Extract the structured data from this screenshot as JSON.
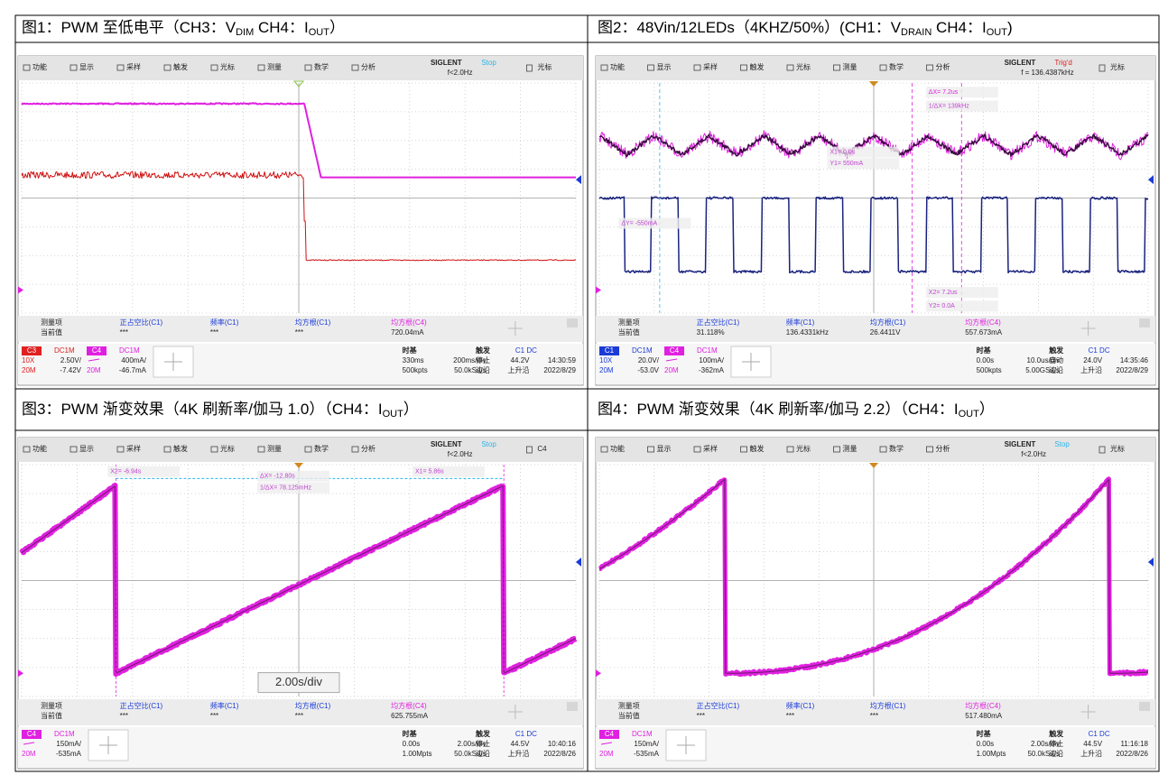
{
  "menu": [
    "功能",
    "显示",
    "采样",
    "触发",
    "光标",
    "测量",
    "数学",
    "分析"
  ],
  "measure_headers": [
    "测量项",
    "正占空比(C1)",
    "频率(C1)",
    "均方根(C1)",
    "均方根(C4)"
  ],
  "measure_row_label": "当前值",
  "timebase_label": "时基",
  "trigger_label": "触发",
  "panels": [
    {
      "caption": [
        "图1：PWM 至低电平（CH3：V",
        "DIM",
        "  CH4：I",
        "OUT",
        "）"
      ],
      "brand": "SIGLENT",
      "state": "Stop",
      "freq": "f<2.0Hz",
      "menu_last": "光标",
      "measure_values": [
        "***",
        "***",
        "***",
        "720.04mA"
      ],
      "channels": [
        {
          "name": "C3",
          "color": "#e02020",
          "coupling": "DC1M",
          "probe": "10X",
          "scale": "2.50V/",
          "bw": "20M",
          "offset": "-7.42V"
        },
        {
          "name": "C4",
          "color": "#e020e0",
          "coupling": "DC1M",
          "scale": "400mA/",
          "bw": "20M",
          "offset": "-46.7mA"
        }
      ],
      "timebase": [
        "330ms",
        "200ms/div",
        "500kpts",
        "50.0kSa/s"
      ],
      "trigger": [
        "停止",
        "边沿"
      ],
      "trig_source": "C1 DC",
      "trig_level": "44.2V",
      "trig_slope": "上升沿",
      "time": "14:30:59",
      "date": "2022/8/29",
      "annotations": []
    },
    {
      "caption": [
        "图2：48Vin/12LEDs（4KHZ/50%）(CH1：V",
        "DRAIN",
        "  CH4：I",
        "OUT",
        ")"
      ],
      "brand": "SIGLENT",
      "state": "Trig'd",
      "freq": "f = 136.4387kHz",
      "menu_last": "光标",
      "measure_values": [
        "31.118%",
        "136.4331kHz",
        "26.4411V",
        "557.673mA"
      ],
      "channels": [
        {
          "name": "C1",
          "color": "#1a3bd8",
          "coupling": "DC1M",
          "probe": "10X",
          "scale": "20.0V/",
          "bw": "20M",
          "offset": "-53.0V"
        },
        {
          "name": "C4",
          "color": "#e020e0",
          "coupling": "DC1M",
          "scale": "100mA/",
          "bw": "20M",
          "offset": "-362mA"
        }
      ],
      "timebase": [
        "0.00s",
        "10.0us/div",
        "500kpts",
        "5.00GSa/s"
      ],
      "trigger": [
        "自动",
        "边沿"
      ],
      "trig_source": "C1 DC",
      "trig_level": "24.0V",
      "trig_slope": "上升沿",
      "time": "14:35:46",
      "date": "2022/8/29",
      "annotations": [
        "ΔX= 7.2us",
        "1/ΔX= 139kHz",
        "X1= 0.0s",
        "Y1= 550mA",
        "ΔY= -550mA",
        "X2= 7.2us",
        "Y2= 0.0A"
      ]
    },
    {
      "caption": [
        "图3：PWM 渐变效果（4K 刷新率/伽马 1.0）（CH4：I",
        "OUT",
        "）"
      ],
      "brand": "SIGLENT",
      "state": "Stop",
      "freq": "f<2.0Hz",
      "menu_last": "C4",
      "measure_values": [
        "***",
        "***",
        "***",
        "625.755mA"
      ],
      "channels": [
        {
          "name": "C4",
          "color": "#e020e0",
          "coupling": "DC1M",
          "scale": "150mA/",
          "bw": "20M",
          "offset": "-535mA"
        }
      ],
      "timebase": [
        "0.00s",
        "2.00s/div",
        "1.00Mpts",
        "50.0kSa/s"
      ],
      "trigger": [
        "停止",
        "边沿"
      ],
      "trig_source": "C1 DC",
      "trig_level": "44.5V",
      "trig_slope": "上升沿",
      "time": "10:40:16",
      "date": "2022/8/26",
      "annotations": [
        "X2= -6.94s",
        "ΔX= -12.80s",
        "1/ΔX= 78.125mHz",
        "X1= 5.86s",
        "2.00s/div"
      ]
    },
    {
      "caption": [
        "图4：PWM 渐变效果（4K 刷新率/伽马 2.2）（CH4：I",
        "OUT",
        "）"
      ],
      "brand": "SIGLENT",
      "state": "Stop",
      "freq": "f<2.0Hz",
      "menu_last": "光标",
      "measure_values": [
        "***",
        "***",
        "***",
        "517.480mA"
      ],
      "channels": [
        {
          "name": "C4",
          "color": "#e020e0",
          "coupling": "DC1M",
          "scale": "150mA/",
          "bw": "20M",
          "offset": "-535mA"
        }
      ],
      "timebase": [
        "0.00s",
        "2.00s/div",
        "1.00Mpts",
        "50.0kSa/s"
      ],
      "trigger": [
        "停止",
        "边沿"
      ],
      "trig_source": "C1 DC",
      "trig_level": "44.5V",
      "trig_slope": "上升沿",
      "time": "11:16:18",
      "date": "2022/8/26",
      "annotations": []
    }
  ]
}
